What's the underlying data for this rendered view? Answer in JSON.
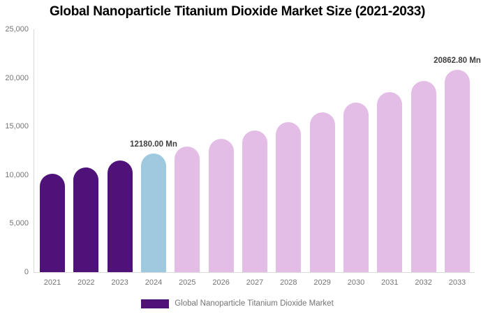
{
  "chart_data": {
    "type": "bar",
    "title": "Global Nanoparticle Titanium Dioxide Market Size (2021-2033)",
    "xlabel": "",
    "ylabel": "",
    "categories": [
      "2021",
      "2022",
      "2023",
      "2024",
      "2025",
      "2026",
      "2027",
      "2028",
      "2029",
      "2030",
      "2031",
      "2032",
      "2033"
    ],
    "values": [
      10150,
      10800,
      11470,
      12180,
      12930,
      13720,
      14570,
      15470,
      16420,
      17440,
      18510,
      19650,
      20862.8
    ],
    "unit": "Mn",
    "bar_colors": [
      "#4E1279",
      "#4E1279",
      "#4E1279",
      "#9FC9DE",
      "#E4BDE6",
      "#E4BDE6",
      "#E4BDE6",
      "#E4BDE6",
      "#E4BDE6",
      "#E4BDE6",
      "#E4BDE6",
      "#E4BDE6",
      "#E4BDE6"
    ],
    "data_labels": [
      {
        "index": 3,
        "text": "12180.00 Mn"
      },
      {
        "index": 12,
        "text": "20862.80 Mn"
      }
    ],
    "y_axis": {
      "range": [
        0,
        25000
      ],
      "ticks": [
        {
          "value": 0,
          "label": "0"
        },
        {
          "value": 5000,
          "label": "5,000"
        },
        {
          "value": 10000,
          "label": "10,000"
        },
        {
          "value": 15000,
          "label": "15,000"
        },
        {
          "value": 20000,
          "label": "20,000"
        },
        {
          "value": 25000,
          "label": "25,000"
        }
      ]
    },
    "grid": false,
    "legend": {
      "position": "bottom",
      "items": [
        {
          "label": "Global Nanoparticle Titanium Dioxide Market",
          "color": "#4E1279"
        }
      ]
    },
    "colors": {
      "historic_bar": "#4E1279",
      "base_year_bar": "#9FC9DE",
      "forecast_bar": "#E4BDE6",
      "axis_line": "#D9D9D9",
      "axis_text": "#757575",
      "data_label_text": "#3F3F3F",
      "title_text": "#000000"
    }
  }
}
